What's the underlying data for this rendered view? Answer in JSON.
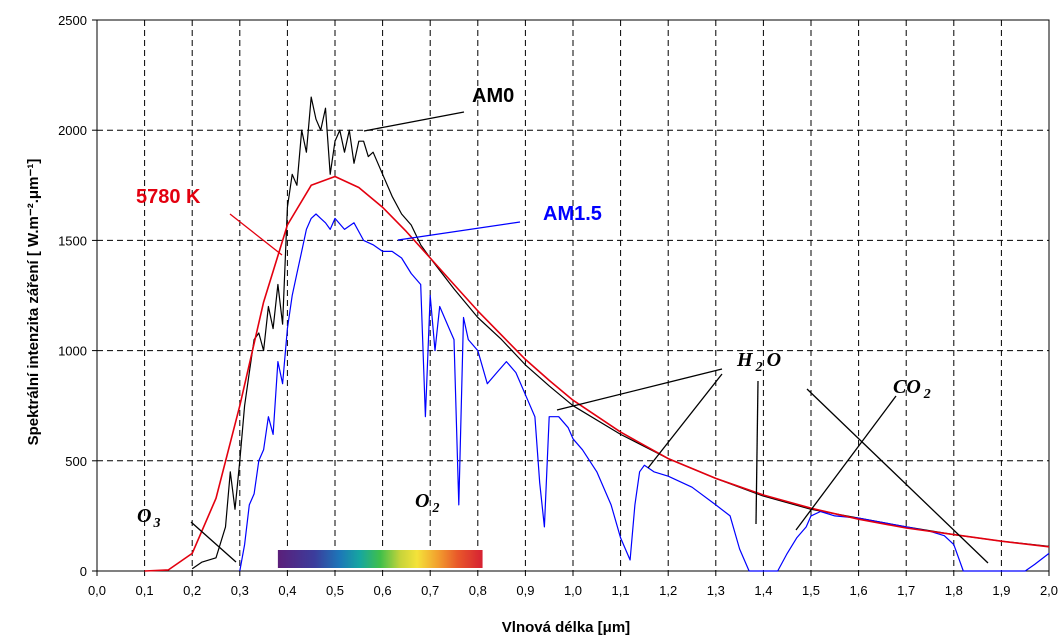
{
  "chart_data": {
    "type": "line",
    "xlabel": "Vlnová délka [μm]",
    "ylabel": "Spektrální intenzita záření [ W.m⁻².μm⁻¹]",
    "xlim": [
      0.0,
      2.0
    ],
    "ylim": [
      0,
      2500
    ],
    "x_ticks": [
      "0,0",
      "0,1",
      "0,2",
      "0,3",
      "0,4",
      "0,5",
      "0,6",
      "0,7",
      "0,8",
      "0,9",
      "1,0",
      "1,1",
      "1,2",
      "1,3",
      "1,4",
      "1,5",
      "1,6",
      "1,7",
      "1,8",
      "1,9",
      "2,0"
    ],
    "y_ticks": [
      "0",
      "500",
      "1000",
      "1500",
      "2000",
      "2500"
    ],
    "grid": true,
    "series": [
      {
        "name": "5780 K",
        "color": "#e3000f",
        "x": [
          0.1,
          0.15,
          0.2,
          0.25,
          0.3,
          0.35,
          0.4,
          0.45,
          0.5,
          0.55,
          0.6,
          0.65,
          0.7,
          0.75,
          0.8,
          0.85,
          0.9,
          0.95,
          1.0,
          1.1,
          1.2,
          1.3,
          1.4,
          1.5,
          1.6,
          1.7,
          1.8,
          1.9,
          2.0
        ],
        "y": [
          0,
          5,
          80,
          330,
          750,
          1220,
          1570,
          1750,
          1790,
          1740,
          1650,
          1540,
          1420,
          1300,
          1180,
          1070,
          960,
          865,
          775,
          630,
          510,
          420,
          345,
          285,
          235,
          195,
          165,
          135,
          110
        ]
      },
      {
        "name": "AM0",
        "color": "#000000",
        "x": [
          0.2,
          0.22,
          0.25,
          0.27,
          0.28,
          0.29,
          0.3,
          0.31,
          0.32,
          0.33,
          0.34,
          0.35,
          0.36,
          0.37,
          0.38,
          0.39,
          0.4,
          0.41,
          0.42,
          0.43,
          0.44,
          0.45,
          0.46,
          0.47,
          0.48,
          0.49,
          0.5,
          0.51,
          0.52,
          0.53,
          0.54,
          0.55,
          0.56,
          0.57,
          0.58,
          0.6,
          0.62,
          0.64,
          0.66,
          0.68,
          0.7,
          0.75,
          0.8,
          0.85,
          0.9,
          0.95,
          1.0,
          1.1,
          1.2,
          1.3,
          1.4,
          1.5,
          1.6,
          1.7,
          1.8,
          1.9,
          2.0
        ],
        "y": [
          10,
          40,
          60,
          200,
          450,
          280,
          500,
          750,
          900,
          1050,
          1080,
          1000,
          1200,
          1100,
          1300,
          1120,
          1650,
          1800,
          1750,
          2000,
          1900,
          2150,
          2050,
          2000,
          2100,
          1800,
          1950,
          2000,
          1900,
          2000,
          1850,
          1950,
          1950,
          1880,
          1900,
          1800,
          1700,
          1620,
          1570,
          1480,
          1420,
          1280,
          1150,
          1050,
          935,
          840,
          750,
          620,
          510,
          420,
          340,
          280,
          240,
          200,
          165,
          135,
          112
        ]
      },
      {
        "name": "AM1.5",
        "color": "#0000ff",
        "x": [
          0.3,
          0.31,
          0.32,
          0.33,
          0.34,
          0.35,
          0.36,
          0.37,
          0.38,
          0.39,
          0.4,
          0.41,
          0.42,
          0.43,
          0.44,
          0.45,
          0.46,
          0.47,
          0.48,
          0.49,
          0.5,
          0.52,
          0.54,
          0.56,
          0.58,
          0.6,
          0.62,
          0.64,
          0.66,
          0.68,
          0.69,
          0.7,
          0.71,
          0.72,
          0.74,
          0.75,
          0.76,
          0.77,
          0.78,
          0.8,
          0.82,
          0.84,
          0.86,
          0.88,
          0.9,
          0.92,
          0.93,
          0.94,
          0.95,
          0.97,
          0.99,
          1.0,
          1.02,
          1.05,
          1.08,
          1.1,
          1.12,
          1.13,
          1.14,
          1.15,
          1.17,
          1.2,
          1.25,
          1.3,
          1.33,
          1.35,
          1.37,
          1.4,
          1.43,
          1.45,
          1.47,
          1.49,
          1.5,
          1.52,
          1.55,
          1.6,
          1.65,
          1.7,
          1.75,
          1.78,
          1.8,
          1.82,
          1.85,
          1.9,
          1.95,
          1.97,
          2.0
        ],
        "y": [
          0,
          120,
          300,
          350,
          500,
          550,
          700,
          620,
          950,
          850,
          1100,
          1250,
          1350,
          1450,
          1550,
          1600,
          1620,
          1600,
          1580,
          1550,
          1600,
          1550,
          1580,
          1500,
          1480,
          1450,
          1450,
          1420,
          1350,
          1300,
          700,
          1250,
          1000,
          1200,
          1100,
          1050,
          300,
          1150,
          1050,
          1000,
          850,
          900,
          950,
          900,
          800,
          700,
          400,
          200,
          700,
          700,
          650,
          600,
          550,
          450,
          300,
          150,
          50,
          300,
          450,
          480,
          450,
          430,
          380,
          300,
          250,
          100,
          0,
          0,
          0,
          80,
          150,
          200,
          250,
          270,
          250,
          240,
          220,
          200,
          180,
          160,
          120,
          0,
          0,
          0,
          0,
          30,
          80
        ]
      }
    ],
    "annotations": [
      "AM0",
      "AM1.5",
      "5780 K",
      "O3",
      "O2",
      "H2O",
      "CO2"
    ],
    "visible_spectrum_bar": {
      "x_start": 0.38,
      "x_end": 0.81
    }
  }
}
